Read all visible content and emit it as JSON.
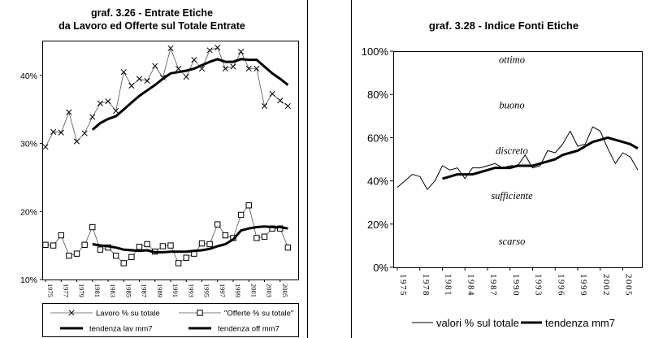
{
  "chart_data": [
    {
      "type": "line",
      "title": "graf. 3.26 - Entrate Etiche",
      "subtitle": "da Lavoro ed Offerte sul Totale Entrate",
      "ylim": [
        10,
        45
      ],
      "yticks": [
        "10%",
        "20%",
        "30%",
        "40%"
      ],
      "ytick_values": [
        10,
        20,
        30,
        40
      ],
      "xticks": [
        "1975",
        "1977",
        "1979",
        "1981",
        "1983",
        "1985",
        "1987",
        "1989",
        "1991",
        "1993",
        "1995",
        "1997",
        "1999",
        "2001",
        "2003",
        "2005"
      ],
      "x": [
        1975,
        1976,
        1977,
        1978,
        1979,
        1980,
        1981,
        1982,
        1983,
        1984,
        1985,
        1986,
        1987,
        1988,
        1989,
        1990,
        1991,
        1992,
        1993,
        1994,
        1995,
        1996,
        1997,
        1998,
        1999,
        2000,
        2001,
        2002,
        2003,
        2004,
        2005,
        2006,
        2007
      ],
      "series": [
        {
          "name": "Lavoro % su totale",
          "marker": "x",
          "values": [
            29.5,
            31.7,
            31.6,
            34.6,
            30.3,
            31.5,
            33.9,
            35.9,
            36.2,
            34.8,
            40.5,
            38.5,
            39.5,
            39.2,
            41.4,
            39.7,
            44.0,
            41.0,
            39.8,
            42.3,
            41.0,
            43.7,
            44.1,
            41.0,
            41.3,
            43.5,
            41.0,
            41.0,
            35.5,
            37.3,
            36.3,
            35.5,
            null
          ]
        },
        {
          "name": "\"Offerte % su totale\"",
          "marker": "square",
          "values": [
            15.1,
            15.0,
            16.5,
            13.5,
            13.8,
            15.1,
            17.7,
            14.4,
            14.7,
            13.5,
            12.4,
            13.3,
            14.8,
            15.2,
            14.1,
            14.9,
            15.0,
            12.4,
            13.2,
            13.8,
            15.3,
            15.2,
            18.1,
            16.5,
            16.1,
            19.5,
            20.9,
            16.1,
            16.3,
            17.5,
            17.5,
            14.7,
            null
          ]
        },
        {
          "name": "tendenza lav mm7",
          "style": "thick",
          "values": [
            null,
            null,
            null,
            null,
            null,
            null,
            32.0,
            33.0,
            33.6,
            34.0,
            35.0,
            36.0,
            37.0,
            37.8,
            38.6,
            39.5,
            40.3,
            40.5,
            40.7,
            41.0,
            41.5,
            42.0,
            42.4,
            42.0,
            42.0,
            42.4,
            42.3,
            42.3,
            41.3,
            40.3,
            39.5,
            38.6,
            null
          ]
        },
        {
          "name": "tendenza off mm7",
          "style": "thick",
          "values": [
            null,
            null,
            null,
            null,
            null,
            null,
            15.2,
            15.0,
            14.9,
            14.7,
            14.4,
            14.3,
            14.2,
            14.3,
            14.0,
            14.0,
            14.1,
            14.1,
            14.1,
            14.2,
            14.3,
            14.5,
            14.9,
            15.2,
            15.9,
            17.2,
            17.5,
            17.7,
            17.8,
            17.7,
            17.7,
            17.5,
            null
          ]
        }
      ],
      "legend_position": "bottom",
      "grid": false
    },
    {
      "type": "line",
      "title": "graf. 3.28 - Indice Fonti Etiche",
      "ylim": [
        0,
        100
      ],
      "yticks": [
        "0%",
        "20%",
        "40%",
        "60%",
        "80%",
        "100%"
      ],
      "ytick_values": [
        0,
        20,
        40,
        60,
        80,
        100
      ],
      "xticks": [
        "1975",
        "1978",
        "1981",
        "1984",
        "1987",
        "1990",
        "1993",
        "1996",
        "1999",
        "2002",
        "2005"
      ],
      "x": [
        1975,
        1976,
        1977,
        1978,
        1979,
        1980,
        1981,
        1982,
        1983,
        1984,
        1985,
        1986,
        1987,
        1988,
        1989,
        1990,
        1991,
        1992,
        1993,
        1994,
        1995,
        1996,
        1997,
        1998,
        1999,
        2000,
        2001,
        2002,
        2003,
        2004,
        2005,
        2006,
        2007
      ],
      "annotations": [
        "ottimo",
        "buono",
        "discreto",
        "sufficiente",
        "scarso"
      ],
      "annotation_values": [
        96,
        75,
        54,
        33,
        12
      ],
      "series": [
        {
          "name": "valori % sul totale",
          "style": "thin",
          "values": [
            37,
            40,
            43,
            42,
            36,
            40,
            47,
            45,
            46,
            41,
            46,
            46,
            47,
            48,
            46,
            47,
            47,
            52,
            46,
            47,
            54,
            53,
            57,
            63,
            56,
            57,
            65,
            63,
            55,
            48,
            53,
            51,
            45
          ]
        },
        {
          "name": "tendenza mm7",
          "style": "thick",
          "values": [
            null,
            null,
            null,
            null,
            null,
            null,
            41,
            42,
            43,
            43,
            43,
            44,
            45,
            46,
            46,
            46,
            47,
            47,
            47,
            48,
            49,
            50,
            52,
            53,
            54,
            56,
            58,
            59,
            60,
            59,
            58,
            57,
            55
          ]
        }
      ],
      "legend_position": "bottom",
      "grid": false
    }
  ]
}
